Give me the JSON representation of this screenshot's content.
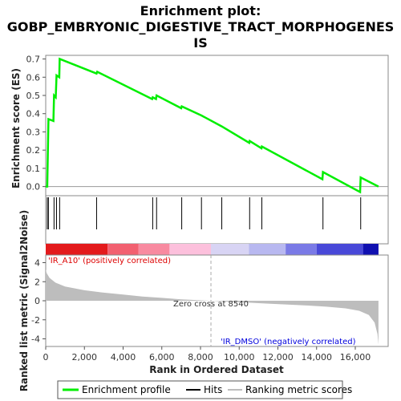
{
  "chart_data": {
    "type": "line",
    "title_lines": [
      "Enrichment plot:",
      "GOBP_EMBRYONIC_DIGESTIVE_TRACT_MORPHOGENES",
      "IS"
    ],
    "es_panel": {
      "ylabel": "Enrichment score (ES)",
      "ylim": [
        -0.05,
        0.72
      ],
      "yticks": [
        "0.7",
        "0.6",
        "0.5",
        "0.4",
        "0.3",
        "0.2",
        "0.1",
        "0.0"
      ],
      "series_color": "#00ee00",
      "points": [
        [
          0,
          0.0
        ],
        [
          80,
          0.0
        ],
        [
          140,
          0.37
        ],
        [
          400,
          0.36
        ],
        [
          430,
          0.5
        ],
        [
          520,
          0.49
        ],
        [
          560,
          0.61
        ],
        [
          700,
          0.6
        ],
        [
          720,
          0.7
        ],
        [
          2630,
          0.62
        ],
        [
          2660,
          0.63
        ],
        [
          5500,
          0.48
        ],
        [
          5530,
          0.49
        ],
        [
          5700,
          0.48
        ],
        [
          5730,
          0.5
        ],
        [
          7000,
          0.43
        ],
        [
          7030,
          0.44
        ],
        [
          8050,
          0.39
        ],
        [
          9100,
          0.33
        ],
        [
          10520,
          0.24
        ],
        [
          10540,
          0.25
        ],
        [
          11150,
          0.21
        ],
        [
          11170,
          0.22
        ],
        [
          14300,
          0.04
        ],
        [
          14330,
          0.08
        ],
        [
          16250,
          -0.03
        ],
        [
          16280,
          0.05
        ],
        [
          17200,
          0.0
        ]
      ]
    },
    "hits_panel": {
      "hit_ranks": [
        80,
        140,
        430,
        560,
        720,
        2630,
        5530,
        5730,
        7030,
        8050,
        9100,
        10540,
        11170,
        14330,
        16280
      ]
    },
    "colorbar": {
      "segments": [
        {
          "from": 0,
          "to": 3200,
          "color": "#e31a1c"
        },
        {
          "from": 3200,
          "to": 4800,
          "color": "#f26070"
        },
        {
          "from": 4800,
          "to": 6400,
          "color": "#f88aa0"
        },
        {
          "from": 6400,
          "to": 8540,
          "color": "#fcc0dc"
        },
        {
          "from": 8540,
          "to": 10500,
          "color": "#d8d4f4"
        },
        {
          "from": 10500,
          "to": 12400,
          "color": "#b8b8f0"
        },
        {
          "from": 12400,
          "to": 14000,
          "color": "#7a7ae6"
        },
        {
          "from": 14000,
          "to": 16400,
          "color": "#4848d8"
        },
        {
          "from": 16400,
          "to": 17200,
          "color": "#1010b0"
        }
      ]
    },
    "metric_panel": {
      "ylabel": "Ranked list metric (Signal2Noise)",
      "ylim": [
        -4.8,
        4.8
      ],
      "yticks": [
        "4",
        "2",
        "0",
        "-2",
        "-4"
      ],
      "fill_color": "#bdbdbd",
      "points": [
        [
          0,
          3.3
        ],
        [
          50,
          2.9
        ],
        [
          200,
          2.4
        ],
        [
          500,
          1.9
        ],
        [
          1000,
          1.5
        ],
        [
          2000,
          1.1
        ],
        [
          3000,
          0.85
        ],
        [
          4000,
          0.65
        ],
        [
          5000,
          0.45
        ],
        [
          6000,
          0.3
        ],
        [
          7000,
          0.15
        ],
        [
          8000,
          0.05
        ],
        [
          8540,
          0.0
        ],
        [
          9500,
          -0.1
        ],
        [
          10500,
          -0.2
        ],
        [
          11500,
          -0.3
        ],
        [
          12500,
          -0.4
        ],
        [
          13500,
          -0.5
        ],
        [
          14500,
          -0.62
        ],
        [
          15500,
          -0.8
        ],
        [
          16200,
          -1.05
        ],
        [
          16700,
          -1.5
        ],
        [
          17000,
          -2.3
        ],
        [
          17150,
          -3.5
        ],
        [
          17200,
          -4.6
        ]
      ],
      "pos_label": "'IR_A10' (positively correlated)",
      "neg_label": "'IR_DMSO' (negatively correlated)",
      "zero_cross_label": "Zero cross at 8540",
      "zero_cross_rank": 8540
    },
    "xlabel": "Rank in Ordered Dataset",
    "xlim": [
      0,
      17700
    ],
    "xticks": [
      "0",
      "2,000",
      "4,000",
      "6,000",
      "8,000",
      "10,000",
      "12,000",
      "14,000",
      "16,000"
    ],
    "legend": {
      "items": [
        "Enrichment profile",
        "Hits",
        "Ranking metric scores"
      ]
    }
  }
}
